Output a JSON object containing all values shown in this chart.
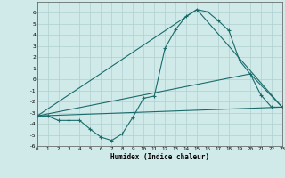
{
  "xlabel": "Humidex (Indice chaleur)",
  "background_color": "#d0eaea",
  "grid_color": "#b0d0d0",
  "line_color": "#1a6b6b",
  "x_range": [
    0,
    23
  ],
  "y_range": [
    -6,
    7
  ],
  "series": [
    {
      "x": [
        0,
        1,
        2,
        3,
        4,
        5,
        6,
        7,
        8,
        9,
        10,
        11,
        12,
        13,
        14,
        15,
        16,
        17,
        18,
        19,
        20,
        21,
        22,
        23
      ],
      "y": [
        -3.3,
        -3.3,
        -3.7,
        -3.7,
        -3.7,
        -4.5,
        -5.2,
        -5.5,
        -4.9,
        -3.4,
        -1.7,
        -1.5,
        2.8,
        4.5,
        5.7,
        6.3,
        6.1,
        5.3,
        4.4,
        1.7,
        0.5,
        -1.4,
        -2.5,
        -2.5
      ]
    },
    {
      "x": [
        0,
        23
      ],
      "y": [
        -3.3,
        -2.5
      ]
    },
    {
      "x": [
        0,
        15,
        23
      ],
      "y": [
        -3.3,
        6.3,
        -2.5
      ]
    },
    {
      "x": [
        0,
        20,
        23
      ],
      "y": [
        -3.3,
        0.5,
        -2.5
      ]
    }
  ]
}
